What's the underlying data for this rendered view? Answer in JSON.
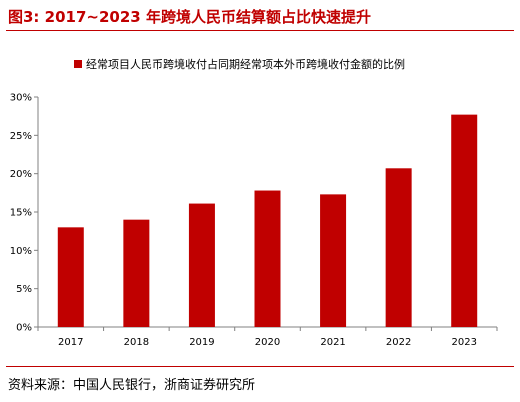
{
  "header": {
    "title": "图3:   2017~2023 年跨境人民币结算额占比快速提升"
  },
  "chart_data": {
    "type": "bar",
    "categories": [
      "2017",
      "2018",
      "2019",
      "2020",
      "2021",
      "2022",
      "2023"
    ],
    "series": [
      {
        "name": "经常项目人民币跨境收付占同期经常项本外币跨境收付金额的比例",
        "values": [
          13.0,
          14.0,
          16.1,
          17.8,
          17.3,
          20.7,
          27.7
        ],
        "color": "#c00000"
      }
    ],
    "yticks": [
      "0%",
      "5%",
      "10%",
      "15%",
      "20%",
      "25%",
      "30%"
    ],
    "ylim": [
      0,
      30
    ],
    "grid": false,
    "legend_position": "top-center"
  },
  "footer": {
    "source": "资料来源：中国人民银行，浙商证券研究所"
  }
}
